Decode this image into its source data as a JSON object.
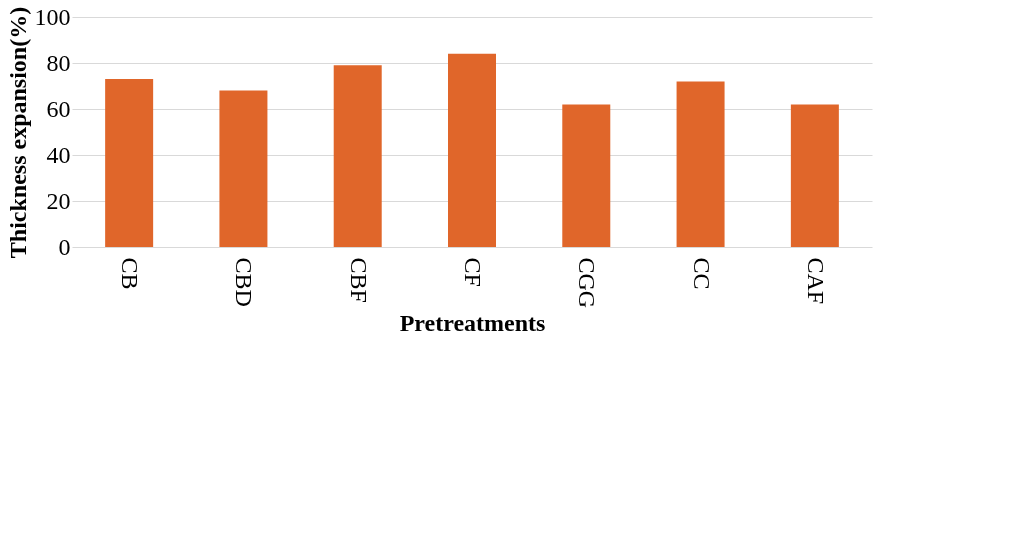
{
  "chart_data": {
    "type": "bar",
    "xlabel": "Pretreatments",
    "ylabel": "Thickness expansion(%)",
    "categories": [
      "CB",
      "CBD",
      "CBF",
      "CF",
      "CGG",
      "CC",
      "CAF"
    ],
    "values": [
      73,
      68,
      79,
      84,
      62,
      72,
      62
    ],
    "color": "#e0662a",
    "ylim": [
      0,
      100
    ],
    "yticks": [
      0,
      20,
      40,
      60,
      80,
      100
    ],
    "grid": "y"
  }
}
